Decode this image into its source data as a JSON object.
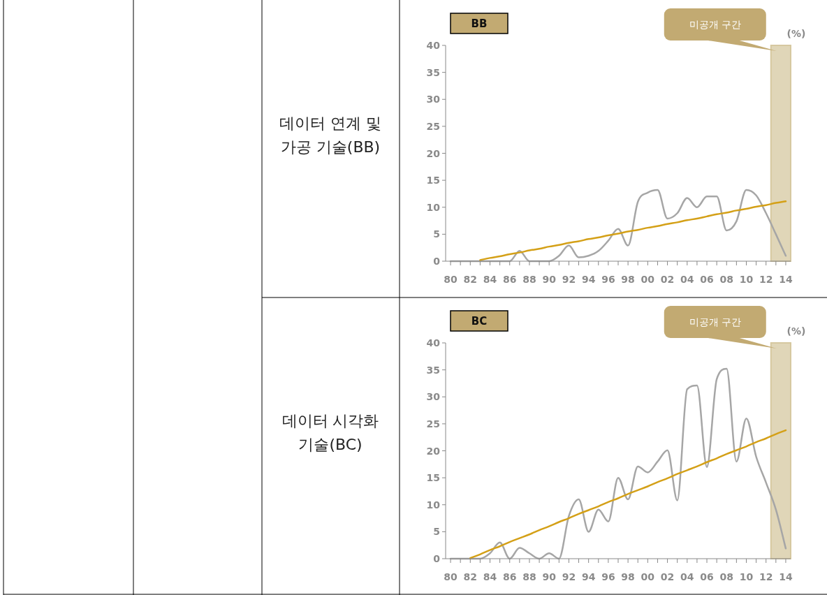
{
  "chart_data": [
    {
      "type": "line",
      "title": "BB",
      "ylabel": "(%)",
      "annotations": [
        "데이터 연계 및\n가공 기술(BB)"
      ],
      "x": [
        1980,
        1981,
        1982,
        1983,
        1984,
        1985,
        1986,
        1987,
        1988,
        1989,
        1990,
        1991,
        1992,
        1993,
        1994,
        1995,
        1996,
        1997,
        1998,
        1999,
        2000,
        2001,
        2002,
        2003,
        2004,
        2005,
        2006,
        2007,
        2008,
        2009,
        2010,
        2011,
        2012,
        2013,
        2014
      ],
      "series": [
        {
          "color": "#a6a6a6",
          "values": [
            0,
            0,
            0,
            0,
            0,
            0,
            0,
            1.9,
            0,
            0,
            0,
            1,
            2.9,
            0.7,
            1,
            1.9,
            3.8,
            6,
            2.9,
            11,
            12.7,
            13.2,
            7.9,
            8.9,
            11.7,
            10,
            12,
            12,
            5.7,
            7.4,
            13.2,
            12.2,
            8.9,
            5,
            1
          ]
        },
        {
          "color": "#d4a017",
          "values": [
            null,
            null,
            null,
            0.2,
            0.6,
            0.9,
            1.3,
            1.6,
            2.0,
            2.3,
            2.7,
            3.0,
            3.4,
            3.7,
            4.1,
            4.4,
            4.8,
            5.1,
            5.5,
            5.8,
            6.2,
            6.5,
            6.9,
            7.2,
            7.6,
            7.9,
            8.3,
            8.7,
            9.0,
            9.4,
            9.7,
            10.1,
            10.4,
            10.8,
            11.1
          ]
        }
      ],
      "bands": [
        {
          "axis": "x",
          "from": 2012.5,
          "to": 2014.5,
          "label": "미공개 구간",
          "color": "#e0d6b8"
        }
      ],
      "xlim": [
        1979.5,
        2014.5
      ],
      "xticks": [
        {
          "value": 1980,
          "label": "80"
        },
        {
          "value": 1981,
          "label": null
        },
        {
          "value": 1982,
          "label": "82"
        },
        {
          "value": 1983,
          "label": null
        },
        {
          "value": 1984,
          "label": "84"
        },
        {
          "value": 1985,
          "label": null
        },
        {
          "value": 1986,
          "label": "86"
        },
        {
          "value": 1987,
          "label": null
        },
        {
          "value": 1988,
          "label": "88"
        },
        {
          "value": 1989,
          "label": null
        },
        {
          "value": 1990,
          "label": "90"
        },
        {
          "value": 1991,
          "label": null
        },
        {
          "value": 1992,
          "label": "92"
        },
        {
          "value": 1993,
          "label": null
        },
        {
          "value": 1994,
          "label": "94"
        },
        {
          "value": 1995,
          "label": null
        },
        {
          "value": 1996,
          "label": "96"
        },
        {
          "value": 1997,
          "label": null
        },
        {
          "value": 1998,
          "label": "98"
        },
        {
          "value": 1999,
          "label": null
        },
        {
          "value": 2000,
          "label": "00"
        },
        {
          "value": 2001,
          "label": null
        },
        {
          "value": 2002,
          "label": "02"
        },
        {
          "value": 2003,
          "label": null
        },
        {
          "value": 2004,
          "label": "04"
        },
        {
          "value": 2005,
          "label": null
        },
        {
          "value": 2006,
          "label": "06"
        },
        {
          "value": 2007,
          "label": null
        },
        {
          "value": 2008,
          "label": "08"
        },
        {
          "value": 2009,
          "label": null
        },
        {
          "value": 2010,
          "label": "10"
        },
        {
          "value": 2011,
          "label": null
        },
        {
          "value": 2012,
          "label": "12"
        },
        {
          "value": 2013,
          "label": null
        },
        {
          "value": 2014,
          "label": "14"
        }
      ],
      "ylim": [
        0,
        40
      ],
      "yticks": [
        0,
        5,
        10,
        15,
        20,
        25,
        30,
        35,
        40
      ],
      "grid": false
    },
    {
      "type": "line",
      "title": "BC",
      "ylabel": "(%)",
      "annotations": [
        "데이터 시각화\n기술(BC)"
      ],
      "x": [
        1980,
        1981,
        1982,
        1983,
        1984,
        1985,
        1986,
        1987,
        1988,
        1989,
        1990,
        1991,
        1992,
        1993,
        1994,
        1995,
        1996,
        1997,
        1998,
        1999,
        2000,
        2001,
        2002,
        2003,
        2004,
        2005,
        2006,
        2007,
        2008,
        2009,
        2010,
        2011,
        2012,
        2013,
        2014
      ],
      "series": [
        {
          "color": "#a6a6a6",
          "values": [
            0,
            0,
            0,
            0,
            1,
            3,
            0,
            2,
            1,
            0,
            1,
            0,
            7.9,
            11,
            5,
            9.1,
            6.9,
            15,
            11,
            17.1,
            16,
            18,
            20.1,
            10.8,
            31.4,
            32.1,
            17,
            33.3,
            35.2,
            18,
            26,
            18.9,
            14.1,
            9.1,
            1.9
          ]
        },
        {
          "color": "#d4a017",
          "values": [
            null,
            null,
            0.1,
            0.8,
            1.6,
            2.3,
            3.1,
            3.8,
            4.5,
            5.3,
            6.0,
            6.8,
            7.5,
            8.3,
            9.0,
            9.7,
            10.5,
            11.2,
            12.0,
            12.7,
            13.4,
            14.2,
            14.9,
            15.7,
            16.4,
            17.1,
            17.9,
            18.6,
            19.4,
            20.1,
            20.8,
            21.6,
            22.3,
            23.1,
            23.8
          ]
        }
      ],
      "bands": [
        {
          "axis": "x",
          "from": 2012.5,
          "to": 2014.5,
          "label": "미공개 구간",
          "color": "#e0d6b8"
        }
      ],
      "xlim": [
        1979.5,
        2014.5
      ],
      "xticks": [
        {
          "value": 1980,
          "label": "80"
        },
        {
          "value": 1981,
          "label": null
        },
        {
          "value": 1982,
          "label": "82"
        },
        {
          "value": 1983,
          "label": null
        },
        {
          "value": 1984,
          "label": "84"
        },
        {
          "value": 1985,
          "label": null
        },
        {
          "value": 1986,
          "label": "86"
        },
        {
          "value": 1987,
          "label": null
        },
        {
          "value": 1988,
          "label": "88"
        },
        {
          "value": 1989,
          "label": null
        },
        {
          "value": 1990,
          "label": "90"
        },
        {
          "value": 1991,
          "label": null
        },
        {
          "value": 1992,
          "label": "92"
        },
        {
          "value": 1993,
          "label": null
        },
        {
          "value": 1994,
          "label": "94"
        },
        {
          "value": 1995,
          "label": null
        },
        {
          "value": 1996,
          "label": "96"
        },
        {
          "value": 1997,
          "label": null
        },
        {
          "value": 1998,
          "label": "98"
        },
        {
          "value": 1999,
          "label": null
        },
        {
          "value": 2000,
          "label": "00"
        },
        {
          "value": 2001,
          "label": null
        },
        {
          "value": 2002,
          "label": "02"
        },
        {
          "value": 2003,
          "label": null
        },
        {
          "value": 2004,
          "label": "04"
        },
        {
          "value": 2005,
          "label": null
        },
        {
          "value": 2006,
          "label": "06"
        },
        {
          "value": 2007,
          "label": null
        },
        {
          "value": 2008,
          "label": "08"
        },
        {
          "value": 2009,
          "label": null
        },
        {
          "value": 2010,
          "label": "10"
        },
        {
          "value": 2011,
          "label": null
        },
        {
          "value": 2012,
          "label": "12"
        },
        {
          "value": 2013,
          "label": null
        },
        {
          "value": 2014,
          "label": "14"
        }
      ],
      "ylim": [
        0,
        40
      ],
      "yticks": [
        0,
        5,
        10,
        15,
        20,
        25,
        30,
        35,
        40
      ],
      "grid": false
    }
  ]
}
